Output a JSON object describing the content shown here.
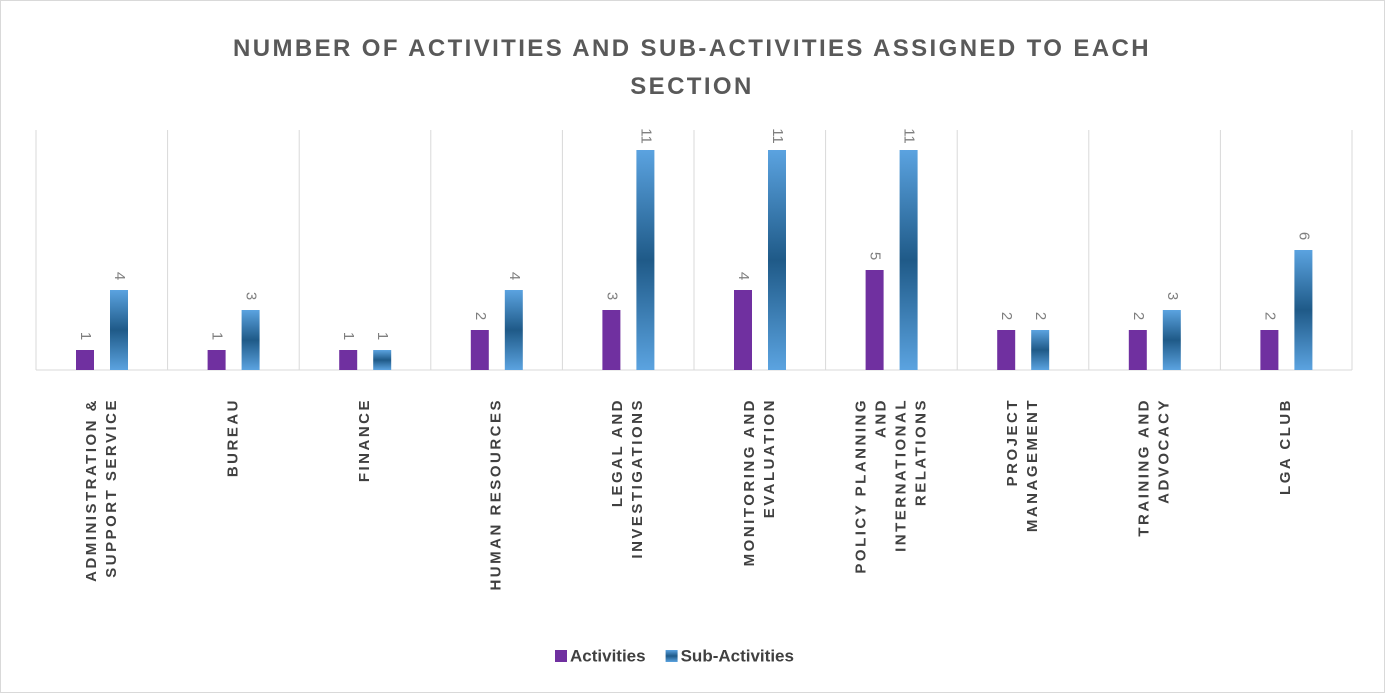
{
  "chart_data": {
    "type": "bar",
    "title": "NUMBER OF ACTIVITIES AND SUB-ACTIVITIES ASSIGNED TO EACH SECTION",
    "categories": [
      "ADMINISTRATION & SUPPORT SERVICE",
      "BUREAU",
      "FINANCE",
      "HUMAN RESOURCES",
      "LEGAL AND INVESTIGATIONS",
      "MONITORING AND EVALUATION",
      "POLICY PLANNING AND INTERNATIONAL RELATIONS",
      "PROJECT MANAGEMENT",
      "TRAINING AND ADVOCACY",
      "LGA CLUB"
    ],
    "series": [
      {
        "name": "Activities",
        "color": "#7030a0",
        "values": [
          1,
          1,
          1,
          2,
          3,
          4,
          5,
          2,
          2,
          2
        ]
      },
      {
        "name": "Sub-Activities",
        "color": "#5b9bd5",
        "values": [
          4,
          3,
          1,
          4,
          11,
          11,
          11,
          2,
          3,
          6
        ]
      }
    ],
    "ylim": [
      0,
      12
    ]
  }
}
